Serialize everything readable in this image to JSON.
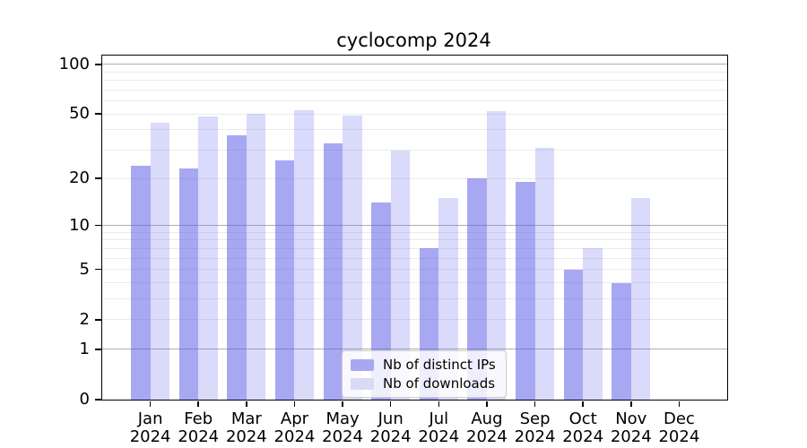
{
  "chart_data": {
    "type": "bar",
    "title": "cyclocomp 2024",
    "categories": [
      "Jan",
      "Feb",
      "Mar",
      "Apr",
      "May",
      "Jun",
      "Jul",
      "Aug",
      "Sep",
      "Oct",
      "Nov",
      "Dec"
    ],
    "year": "2024",
    "series": [
      {
        "name": "Nb of distinct IPs",
        "color": "rgba(85,85,230,0.51)",
        "legend_swatch_color": "#a8a8f0",
        "values": [
          24,
          23,
          37,
          26,
          33,
          14,
          7,
          20,
          19,
          5,
          4,
          0
        ]
      },
      {
        "name": "Nb of downloads",
        "color": "rgba(85,85,230,0.22)",
        "legend_swatch_color": "#dadaf8",
        "values": [
          44,
          48,
          50,
          53,
          49,
          30,
          15,
          52,
          31,
          7,
          15,
          0
        ]
      }
    ],
    "xlabel": "",
    "ylabel": "",
    "yscale": "log1p",
    "ylim": [
      0,
      113
    ],
    "yticks": [
      0,
      1,
      2,
      5,
      10,
      20,
      50,
      100
    ],
    "major_gridlines": [
      1,
      10,
      100
    ],
    "minor_gridlines": [
      2,
      3,
      4,
      5,
      6,
      7,
      8,
      9,
      20,
      30,
      40,
      50,
      60,
      70,
      80,
      90
    ],
    "grid": true,
    "legend_position": "lower center"
  },
  "colors": {
    "major_grid": "#b0b0b0",
    "minor_grid": "#eaeaea",
    "spine": "#000000",
    "background": "#ffffff"
  }
}
